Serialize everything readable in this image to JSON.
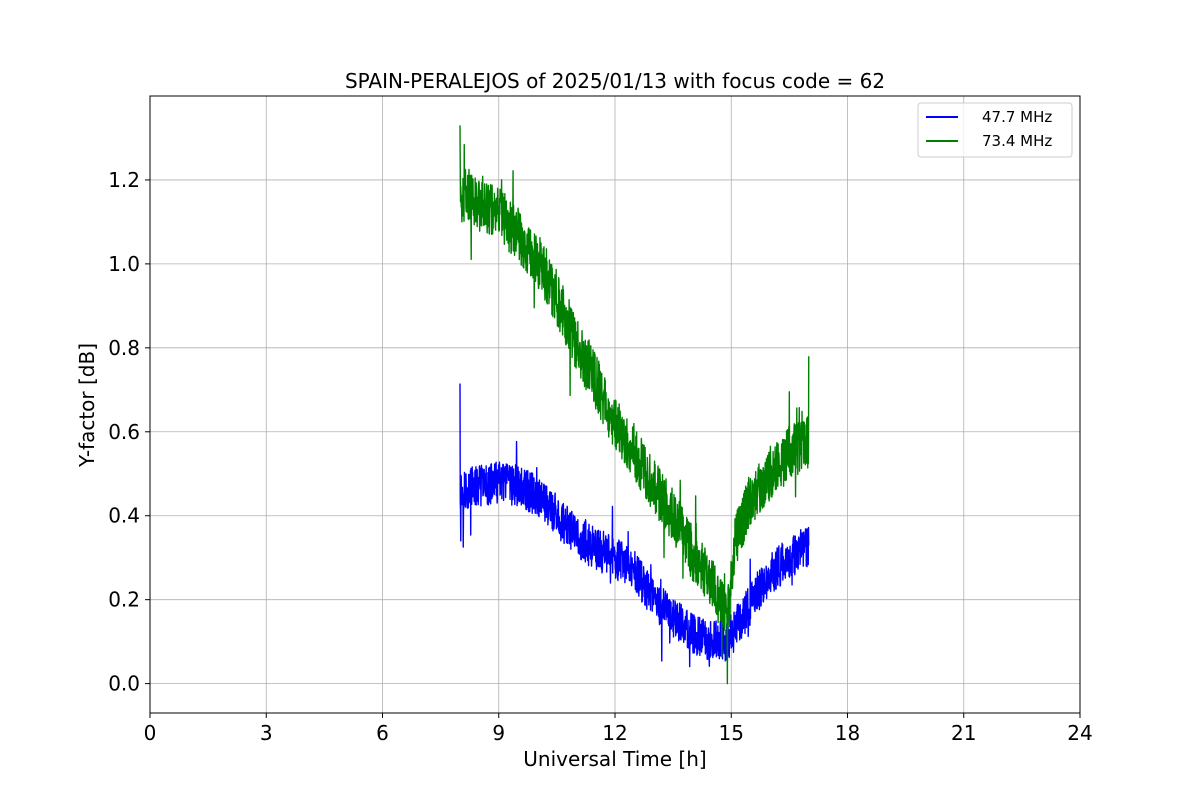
{
  "chart_data": {
    "type": "line",
    "title": "SPAIN-PERALEJOS of 2025/01/13 with focus code = 62",
    "xlabel": "Universal Time [h]",
    "ylabel": "Y-factor [dB]",
    "xlim": [
      0,
      24
    ],
    "ylim": [
      -0.07,
      1.4
    ],
    "xticks": [
      0,
      3,
      6,
      9,
      12,
      15,
      18,
      21,
      24
    ],
    "xtick_labels": [
      "0",
      "3",
      "6",
      "9",
      "12",
      "15",
      "18",
      "21",
      "24"
    ],
    "yticks": [
      0.0,
      0.2,
      0.4,
      0.6,
      0.8,
      1.0,
      1.2
    ],
    "ytick_labels": [
      "0.0",
      "0.2",
      "0.4",
      "0.6",
      "0.8",
      "1.0",
      "1.2"
    ],
    "grid": true,
    "legend": {
      "placement": "top-right"
    },
    "series": [
      {
        "name": "47.7 MHz",
        "color": "#0000ff",
        "x": [
          8.0,
          8.5,
          9.0,
          9.5,
          10.0,
          10.5,
          11.0,
          11.5,
          12.0,
          12.5,
          13.0,
          13.5,
          14.0,
          14.5,
          14.9,
          15.3,
          15.7,
          16.0,
          16.5,
          17.0
        ],
        "values": [
          0.46,
          0.47,
          0.48,
          0.47,
          0.45,
          0.4,
          0.35,
          0.32,
          0.3,
          0.27,
          0.2,
          0.16,
          0.12,
          0.1,
          0.1,
          0.16,
          0.22,
          0.26,
          0.3,
          0.33
        ],
        "noise": 0.05,
        "spikes": [
          [
            8.0,
            0.715
          ],
          [
            8.02,
            0.34
          ]
        ]
      },
      {
        "name": "73.4 MHz",
        "color": "#008000",
        "x": [
          8.0,
          8.5,
          9.0,
          9.5,
          10.0,
          10.5,
          11.0,
          11.5,
          12.0,
          12.5,
          13.0,
          13.5,
          14.0,
          14.5,
          14.9,
          15.1,
          15.5,
          16.0,
          16.5,
          17.0
        ],
        "values": [
          1.17,
          1.15,
          1.12,
          1.07,
          1.01,
          0.92,
          0.81,
          0.72,
          0.62,
          0.55,
          0.47,
          0.4,
          0.31,
          0.24,
          0.15,
          0.34,
          0.44,
          0.5,
          0.55,
          0.58
        ],
        "noise": 0.065,
        "spikes": [
          [
            8.0,
            1.33
          ],
          [
            8.05,
            1.1
          ],
          [
            14.9,
            0.0
          ],
          [
            17.0,
            0.78
          ]
        ]
      }
    ]
  }
}
